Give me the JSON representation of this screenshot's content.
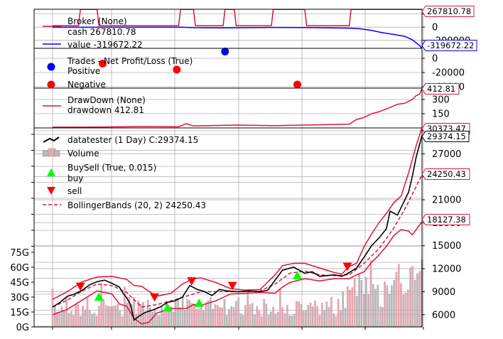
{
  "chart_data": {
    "type": "line",
    "x_range": [
      0,
      100
    ],
    "panels": [
      {
        "name": "broker",
        "ylim": [
          -320000,
          270000
        ],
        "yticks": [
          -200000,
          0,
          200000
        ],
        "ytick_labels": [
          "-200000",
          "0",
          "200000"
        ],
        "legend": {
          "title": "Broker (None)",
          "entries": [
            "cash 267810.78",
            "value -319672.22"
          ]
        },
        "series": [
          {
            "name": "cash",
            "color": "#dc143c",
            "points": [
              [
                0,
                22000
              ],
              [
                7,
                22000
              ],
              [
                7.5,
                267810
              ],
              [
                12,
                267810
              ],
              [
                12.5,
                22000
              ],
              [
                34,
                22000
              ],
              [
                34.5,
                267810
              ],
              [
                38,
                267810
              ],
              [
                38.5,
                22000
              ],
              [
                46,
                22000
              ],
              [
                46.5,
                267810
              ],
              [
                49,
                267810
              ],
              [
                49.5,
                22000
              ],
              [
                59,
                22000
              ],
              [
                59.5,
                267810
              ],
              [
                68,
                267810
              ],
              [
                68.5,
                22000
              ],
              [
                80,
                22000
              ],
              [
                80.5,
                267810
              ],
              [
                99.6,
                267810
              ]
            ]
          },
          {
            "name": "value",
            "color": "#0000ff",
            "points": [
              [
                0,
                0
              ],
              [
                7,
                0
              ],
              [
                12,
                0
              ],
              [
                34,
                0
              ],
              [
                38,
                -8000
              ],
              [
                46,
                -12000
              ],
              [
                59,
                -5000
              ],
              [
                68,
                -6000
              ],
              [
                80,
                -15000
              ],
              [
                83,
                -25000
              ],
              [
                86,
                -50000
              ],
              [
                89,
                -85000
              ],
              [
                92,
                -110000
              ],
              [
                95,
                -140000
              ],
              [
                97,
                -190000
              ],
              [
                99,
                -280000
              ],
              [
                99.6,
                -319672
              ]
            ]
          }
        ],
        "last_labels": [
          "267810.78",
          "-319672.22"
        ]
      },
      {
        "name": "trades",
        "ylim": [
          -42000,
          14000
        ],
        "yticks": [
          -40000,
          -20000,
          0
        ],
        "ytick_labels": [
          "-40000",
          "-20000",
          "0"
        ],
        "legend": {
          "title": "Trades - Net Profit/Loss (True)",
          "entries": [
            "Positive",
            "Negative"
          ]
        },
        "positive": [
          [
            46.5,
            9500
          ]
        ],
        "negative": [
          [
            13.5,
            -7500
          ],
          [
            33.5,
            -16000
          ],
          [
            66,
            -37000
          ]
        ]
      },
      {
        "name": "drawdown",
        "ylim": [
          0,
          420
        ],
        "yticks": [
          150,
          300
        ],
        "ytick_labels": [
          "150",
          "300"
        ],
        "legend": {
          "title": "DrawDown (None)",
          "entries": [
            "drawdown 412.81"
          ]
        },
        "series": [
          {
            "name": "drawdown",
            "color": "#dc143c",
            "points": [
              [
                0,
                8
              ],
              [
                8,
                8
              ],
              [
                12,
                10
              ],
              [
                24,
                14
              ],
              [
                34,
                12
              ],
              [
                36,
                45
              ],
              [
                38,
                22
              ],
              [
                50,
                30
              ],
              [
                60,
                24
              ],
              [
                68,
                30
              ],
              [
                80,
                40
              ],
              [
                82,
                90
              ],
              [
                84,
                110
              ],
              [
                86,
                150
              ],
              [
                88,
                170
              ],
              [
                90,
                200
              ],
              [
                93,
                250
              ],
              [
                95,
                260
              ],
              [
                97,
                300
              ],
              [
                98,
                340
              ],
              [
                99,
                360
              ],
              [
                99.6,
                412.81
              ]
            ]
          }
        ],
        "last_labels": [
          "412.81"
        ]
      },
      {
        "name": "price",
        "ylim": [
          4400,
          30373
        ],
        "yticks": [
          6000,
          9000,
          12000,
          15000,
          18000,
          21000,
          24000,
          27000,
          30000
        ],
        "ytick_labels": [
          "6000",
          "9000",
          "12000",
          "15000",
          "18000",
          "21000",
          "24000",
          "27000",
          "30000"
        ],
        "volume_ticks": [
          "0G",
          "15G",
          "30G",
          "45G",
          "60G",
          "75G"
        ],
        "volume_max": 230,
        "legend": {
          "title": "datatester (1 Day) C:29374.15",
          "entries": [
            "Volume",
            "BuySell (True, 0.015)",
            "buy",
            "sell",
            "BollingerBands (20, 2) 24250.43"
          ]
        },
        "close": [
          [
            0,
            7000
          ],
          [
            2,
            7600
          ],
          [
            4,
            8400
          ],
          [
            6,
            8700
          ],
          [
            8,
            9200
          ],
          [
            10,
            9900
          ],
          [
            12,
            10300
          ],
          [
            14,
            10500
          ],
          [
            16,
            10100
          ],
          [
            18,
            9600
          ],
          [
            19,
            8800
          ],
          [
            20,
            8200
          ],
          [
            21,
            7300
          ],
          [
            22,
            5300
          ],
          [
            23,
            5700
          ],
          [
            25,
            6300
          ],
          [
            27,
            6600
          ],
          [
            29,
            7000
          ],
          [
            31,
            7600
          ],
          [
            33,
            7800
          ],
          [
            35,
            8300
          ],
          [
            37,
            9800
          ],
          [
            39,
            9300
          ],
          [
            41,
            9000
          ],
          [
            43,
            8500
          ],
          [
            45,
            9300
          ],
          [
            47,
            9100
          ],
          [
            50,
            9000
          ],
          [
            53,
            9100
          ],
          [
            56,
            9000
          ],
          [
            58,
            9200
          ],
          [
            60,
            10500
          ],
          [
            62,
            11800
          ],
          [
            65,
            12200
          ],
          [
            68,
            11400
          ],
          [
            70,
            11600
          ],
          [
            72,
            11000
          ],
          [
            74,
            11100
          ],
          [
            76,
            11200
          ],
          [
            78,
            11000
          ],
          [
            80,
            11500
          ],
          [
            82,
            12100
          ],
          [
            84,
            13500
          ],
          [
            86,
            15000
          ],
          [
            88,
            16000
          ],
          [
            90,
            17200
          ],
          [
            91,
            19500
          ],
          [
            93,
            19000
          ],
          [
            94,
            20000
          ],
          [
            96,
            22000
          ],
          [
            97,
            24000
          ],
          [
            98,
            26500
          ],
          [
            99.6,
            29374
          ]
        ],
        "bb_mid": [
          [
            0,
            7000
          ],
          [
            4,
            7900
          ],
          [
            8,
            9100
          ],
          [
            12,
            10000
          ],
          [
            16,
            9800
          ],
          [
            20,
            8900
          ],
          [
            24,
            7000
          ],
          [
            28,
            7300
          ],
          [
            32,
            7800
          ],
          [
            36,
            8400
          ],
          [
            40,
            9000
          ],
          [
            44,
            9000
          ],
          [
            48,
            9000
          ],
          [
            52,
            9000
          ],
          [
            56,
            9100
          ],
          [
            60,
            10000
          ],
          [
            64,
            11400
          ],
          [
            68,
            11700
          ],
          [
            72,
            11200
          ],
          [
            76,
            11100
          ],
          [
            80,
            11200
          ],
          [
            84,
            12700
          ],
          [
            88,
            14600
          ],
          [
            92,
            17300
          ],
          [
            95,
            19800
          ],
          [
            97,
            21700
          ],
          [
            99.6,
            24250
          ]
        ],
        "bb_top": [
          [
            0,
            8000
          ],
          [
            4,
            9000
          ],
          [
            8,
            10300
          ],
          [
            12,
            10900
          ],
          [
            16,
            11000
          ],
          [
            20,
            10600
          ],
          [
            22,
            9800
          ],
          [
            24,
            9700
          ],
          [
            28,
            8400
          ],
          [
            32,
            8800
          ],
          [
            35,
            10000
          ],
          [
            38,
            10700
          ],
          [
            40,
            10800
          ],
          [
            44,
            10200
          ],
          [
            48,
            9400
          ],
          [
            52,
            9200
          ],
          [
            56,
            9300
          ],
          [
            60,
            11200
          ],
          [
            62,
            12400
          ],
          [
            65,
            12700
          ],
          [
            68,
            12700
          ],
          [
            72,
            12100
          ],
          [
            76,
            11500
          ],
          [
            78,
            11300
          ],
          [
            80,
            12300
          ],
          [
            82,
            12700
          ],
          [
            84,
            14900
          ],
          [
            86,
            16500
          ],
          [
            88,
            18000
          ],
          [
            90,
            19200
          ],
          [
            92,
            20600
          ],
          [
            94,
            21500
          ],
          [
            96,
            24500
          ],
          [
            98,
            28000
          ],
          [
            99.6,
            30373
          ]
        ],
        "bb_bot": [
          [
            0,
            6000
          ],
          [
            4,
            6700
          ],
          [
            8,
            7900
          ],
          [
            12,
            9100
          ],
          [
            16,
            8700
          ],
          [
            18,
            7400
          ],
          [
            20,
            7100
          ],
          [
            22,
            5500
          ],
          [
            24,
            4800
          ],
          [
            26,
            5000
          ],
          [
            28,
            6200
          ],
          [
            32,
            6800
          ],
          [
            36,
            6800
          ],
          [
            38,
            7300
          ],
          [
            40,
            7200
          ],
          [
            44,
            7800
          ],
          [
            48,
            8700
          ],
          [
            52,
            8800
          ],
          [
            56,
            8900
          ],
          [
            60,
            8800
          ],
          [
            62,
            9600
          ],
          [
            64,
            10200
          ],
          [
            68,
            10700
          ],
          [
            72,
            10400
          ],
          [
            76,
            10700
          ],
          [
            80,
            10700
          ],
          [
            82,
            11200
          ],
          [
            84,
            11600
          ],
          [
            86,
            12800
          ],
          [
            88,
            13800
          ],
          [
            90,
            14900
          ],
          [
            92,
            16300
          ],
          [
            94,
            17100
          ],
          [
            96,
            16900
          ],
          [
            97,
            16400
          ],
          [
            99.6,
            18127
          ]
        ],
        "buys": [
          [
            12.5,
            8300
          ],
          [
            31,
            6900
          ],
          [
            39.5,
            7500
          ],
          [
            66,
            11100
          ]
        ],
        "sells": [
          [
            7.5,
            9700
          ],
          [
            27.5,
            8300
          ],
          [
            37.5,
            10400
          ],
          [
            48.5,
            9800
          ],
          [
            79.5,
            12300
          ]
        ],
        "last_labels": [
          "30373.47",
          "29374.15",
          "24250.43",
          "18127.38"
        ]
      }
    ]
  }
}
